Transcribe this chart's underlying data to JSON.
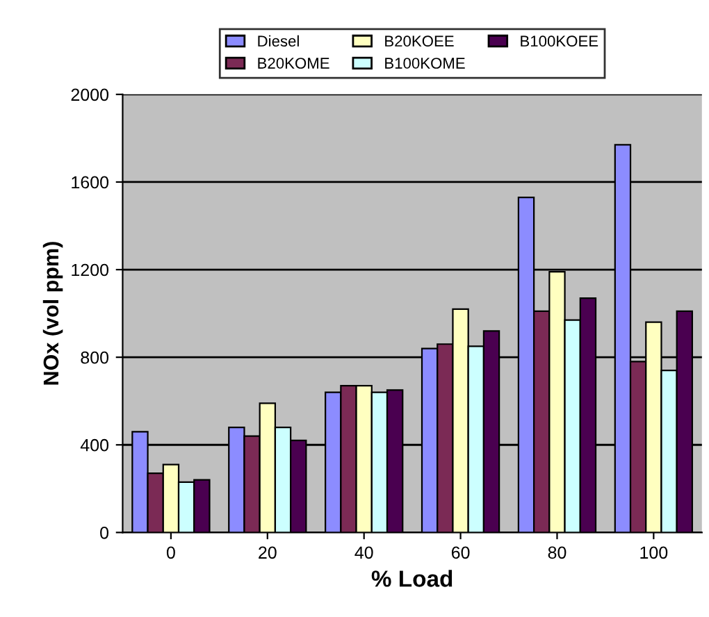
{
  "chart_data": {
    "type": "bar",
    "xlabel": "% Load",
    "ylabel": "NOx (vol ppm)",
    "categories": [
      "0",
      "20",
      "40",
      "60",
      "80",
      "100"
    ],
    "series": [
      {
        "name": "Diesel",
        "color": "#8c8cff",
        "values": [
          460,
          480,
          640,
          840,
          1530,
          1770
        ]
      },
      {
        "name": "B20KOME",
        "color": "#7b2a55",
        "values": [
          270,
          440,
          670,
          860,
          1010,
          780
        ]
      },
      {
        "name": "B20KOEE",
        "color": "#ffffc0",
        "values": [
          310,
          590,
          670,
          1020,
          1190,
          960
        ]
      },
      {
        "name": "B100KOME",
        "color": "#ccffff",
        "values": [
          230,
          480,
          640,
          850,
          970,
          740
        ]
      },
      {
        "name": "B100KOEE",
        "color": "#4a0050",
        "values": [
          240,
          420,
          650,
          920,
          1070,
          1010
        ]
      }
    ],
    "ylim": [
      0,
      2000
    ],
    "yticks": [
      0,
      400,
      800,
      1200,
      1600,
      2000
    ],
    "grid": "y",
    "legend": "top"
  }
}
